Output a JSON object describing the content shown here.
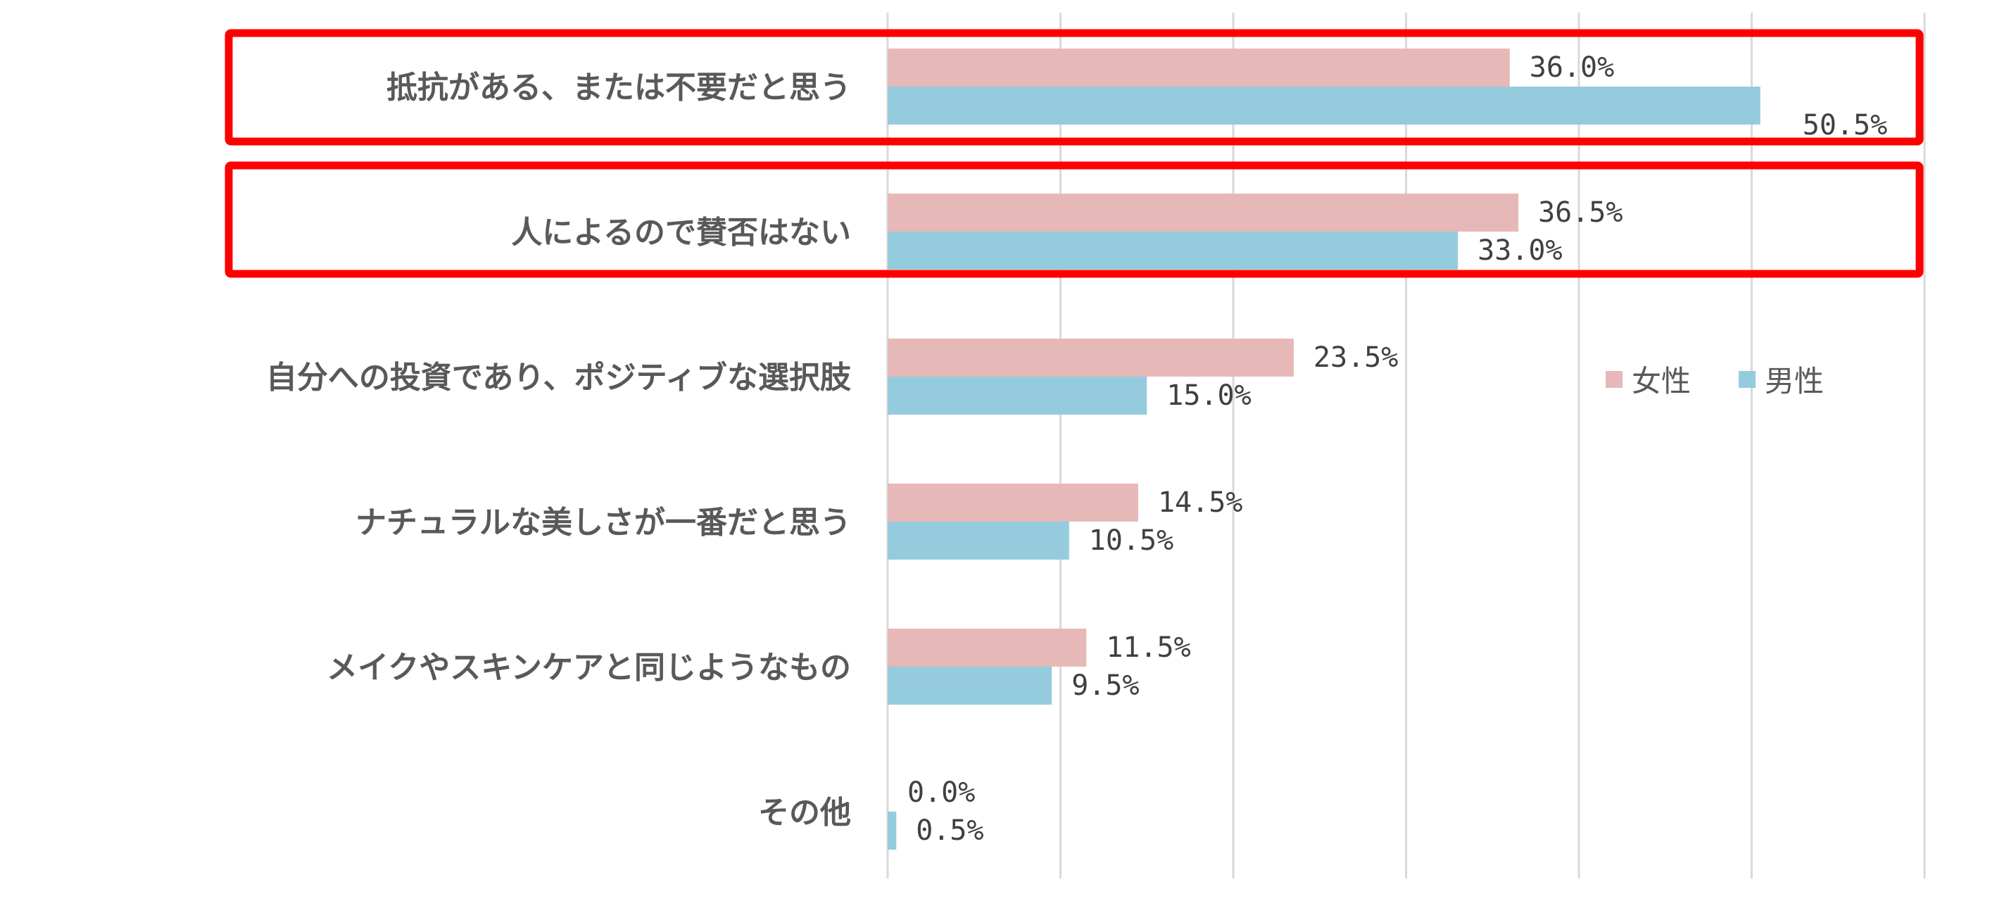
{
  "chart_data": {
    "type": "bar",
    "orientation": "horizontal",
    "categories": [
      "抵抗がある、または不要だと思う",
      "人によるので賛否はない",
      "自分への投資であり、ポジティブな選択肢",
      "ナチュラルな美しさが一番だと思う",
      "メイクやスキンケアと同じようなもの",
      "その他"
    ],
    "series": [
      {
        "name": "女性",
        "color": "#E6B8B7",
        "values": [
          36.0,
          36.5,
          23.5,
          14.5,
          11.5,
          0.0
        ],
        "labels": [
          "36.0%",
          "36.5%",
          "23.5%",
          "14.5%",
          "11.5%",
          "0.0%"
        ]
      },
      {
        "name": "男性",
        "color": "#95CCDD",
        "values": [
          50.5,
          33.0,
          15.0,
          10.5,
          9.5,
          0.5
        ],
        "labels": [
          "50.5%",
          "33.0%",
          "15.0%",
          "10.5%",
          "9.5%",
          "0.5%"
        ]
      }
    ],
    "xlim": [
      0,
      60
    ],
    "grid": true,
    "xaxis_tick_labels_shown": false,
    "legend": "right",
    "highlighted_categories": [
      0,
      1
    ],
    "highlight_color": "#FF0000"
  }
}
